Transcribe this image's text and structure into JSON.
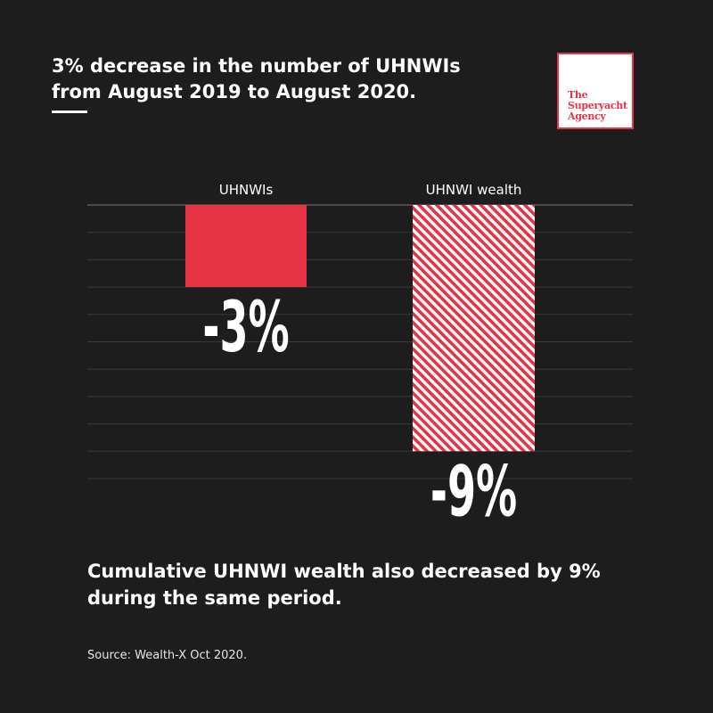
{
  "headline": {
    "line1": "3% decrease in the number of UHNWIs",
    "line2": "from August 2019 to August 2020."
  },
  "logo": {
    "line1": "The",
    "line2": "Superyacht",
    "line3": "Agency"
  },
  "chart_data": {
    "type": "bar",
    "categories": [
      "UHNWIs",
      "UHNWI wealth"
    ],
    "values": [
      -3,
      -9
    ],
    "value_labels": [
      "-3%",
      "-9%"
    ],
    "ylim": [
      -10,
      0
    ],
    "grid": true,
    "bar_styles": [
      "solid",
      "hatched"
    ]
  },
  "summary": {
    "line1": "Cumulative UHNWI wealth also decreased by 9%",
    "line2": "during the same period."
  },
  "source": "Source: Wealth-X Oct 2020.",
  "colors": {
    "background": "#1e1d1d",
    "accent": "#e63346",
    "text": "#ffffff",
    "grid": "#3a3939"
  }
}
